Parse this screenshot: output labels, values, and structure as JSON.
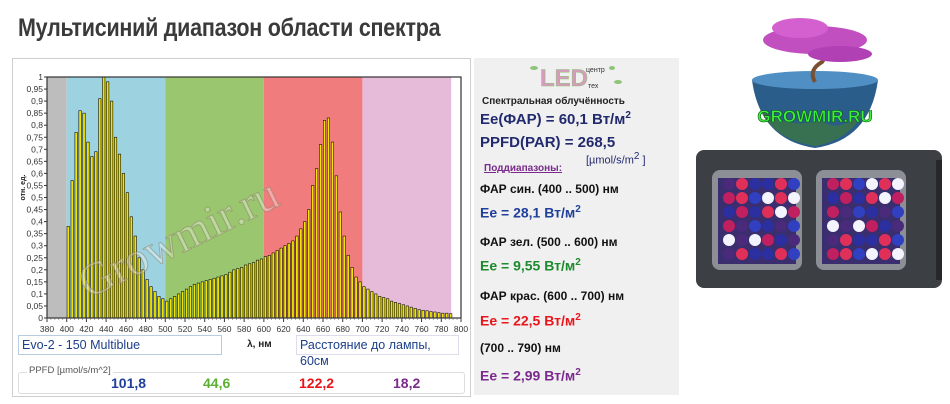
{
  "title": "Мультисиний диапазон области спектра",
  "chart_data": {
    "type": "bar",
    "xlabel": "λ, нм",
    "ylabel": "отн. ед.",
    "xlim": [
      380,
      800
    ],
    "ylim": [
      0,
      1
    ],
    "xticks": [
      380,
      400,
      420,
      440,
      460,
      480,
      500,
      520,
      540,
      560,
      580,
      600,
      620,
      640,
      660,
      680,
      700,
      720,
      740,
      760,
      780,
      800
    ],
    "yticks": [
      "0",
      "0,05",
      "0,1",
      "0,15",
      "0,2",
      "0,25",
      "0,3",
      "0,35",
      "0,4",
      "0,45",
      "0,5",
      "0,55",
      "0,6",
      "0,65",
      "0,7",
      "0,75",
      "0,8",
      "0,85",
      "0,9",
      "0,95",
      "1"
    ],
    "bands": [
      {
        "from": 380,
        "to": 400,
        "color": "#bdbdbd"
      },
      {
        "from": 400,
        "to": 500,
        "color": "#9dd3e1"
      },
      {
        "from": 500,
        "to": 600,
        "color": "#99c66e"
      },
      {
        "from": 600,
        "to": 700,
        "color": "#f07c7e"
      },
      {
        "from": 700,
        "to": 790,
        "color": "#e6bbd9"
      }
    ],
    "bar_color": "#f2e600",
    "x": [
      400,
      404,
      408,
      412,
      416,
      420,
      424,
      428,
      432,
      436,
      440,
      444,
      448,
      452,
      456,
      460,
      464,
      468,
      472,
      476,
      480,
      484,
      488,
      492,
      496,
      500,
      504,
      508,
      512,
      516,
      520,
      524,
      528,
      532,
      536,
      540,
      544,
      548,
      552,
      556,
      560,
      564,
      568,
      572,
      576,
      580,
      584,
      588,
      592,
      596,
      600,
      604,
      608,
      612,
      616,
      620,
      624,
      628,
      632,
      636,
      640,
      644,
      648,
      652,
      656,
      660,
      664,
      668,
      672,
      676,
      680,
      684,
      688,
      692,
      696,
      700,
      704,
      708,
      712,
      716,
      720,
      724,
      728,
      732,
      736,
      740,
      744,
      748,
      752,
      756,
      760,
      764,
      768,
      772,
      776,
      780,
      784,
      788
    ],
    "values": [
      0.38,
      0.57,
      0.77,
      0.86,
      0.85,
      0.73,
      0.67,
      0.69,
      0.91,
      1.0,
      0.98,
      0.9,
      0.75,
      0.68,
      0.6,
      0.52,
      0.42,
      0.34,
      0.25,
      0.2,
      0.16,
      0.13,
      0.11,
      0.09,
      0.08,
      0.07,
      0.08,
      0.09,
      0.1,
      0.11,
      0.12,
      0.13,
      0.14,
      0.145,
      0.15,
      0.155,
      0.16,
      0.165,
      0.17,
      0.175,
      0.18,
      0.19,
      0.2,
      0.205,
      0.21,
      0.22,
      0.225,
      0.23,
      0.24,
      0.245,
      0.255,
      0.26,
      0.27,
      0.28,
      0.29,
      0.3,
      0.31,
      0.32,
      0.34,
      0.37,
      0.4,
      0.45,
      0.55,
      0.62,
      0.72,
      0.82,
      0.83,
      0.73,
      0.59,
      0.44,
      0.34,
      0.26,
      0.21,
      0.17,
      0.15,
      0.13,
      0.12,
      0.11,
      0.1,
      0.09,
      0.085,
      0.08,
      0.07,
      0.065,
      0.06,
      0.055,
      0.05,
      0.045,
      0.04,
      0.035,
      0.032,
      0.03,
      0.027,
      0.025,
      0.022,
      0.02,
      0.02,
      0.018
    ],
    "watermark": "Growmir.ru"
  },
  "lamp_label": "Evo-2 - 150 Multiblue",
  "distance_label": "Расстояние до лампы,  60см",
  "ppfd": {
    "label": "PPFD [µmol/s/m^2]",
    "blue": "101,8",
    "green": "44,6",
    "red": "122,2",
    "far_red": "18,2"
  },
  "side": {
    "logo": "LED центр тех",
    "heading": "Спектральная облучённость",
    "ee_par": "Ee(ФАР) = 60,1 Вт/м",
    "sup": "2",
    "ppfd_par": "PPFD(PAR) = 268,5",
    "ppfd_unit": "[µmol/s/m",
    "ppfd_unit_end": " ]",
    "subranges": "Поддиапазоны:",
    "blue_range": "ФАР син. (400 .. 500) нм",
    "blue_ee": "Ee = 28,1 Вт/м",
    "green_range": "ФАР зел. (500 .. 600) нм",
    "green_ee": "Ee = 9,55 Вт/м",
    "red_range": "ФАР крас. (600 .. 700) нм",
    "red_ee": "Ee = 22,5 Вт/м",
    "fr_range": "(700 .. 790) нм",
    "fr_ee": "Ee = 2,99 Вт/м"
  },
  "colors": {
    "blue": "#1f3f9a",
    "green": "#1e8a2e",
    "red": "#e8161c",
    "purple": "#7a2a8c",
    "navy": "#222a6e"
  },
  "logo_text": "GROWMIR.RU"
}
